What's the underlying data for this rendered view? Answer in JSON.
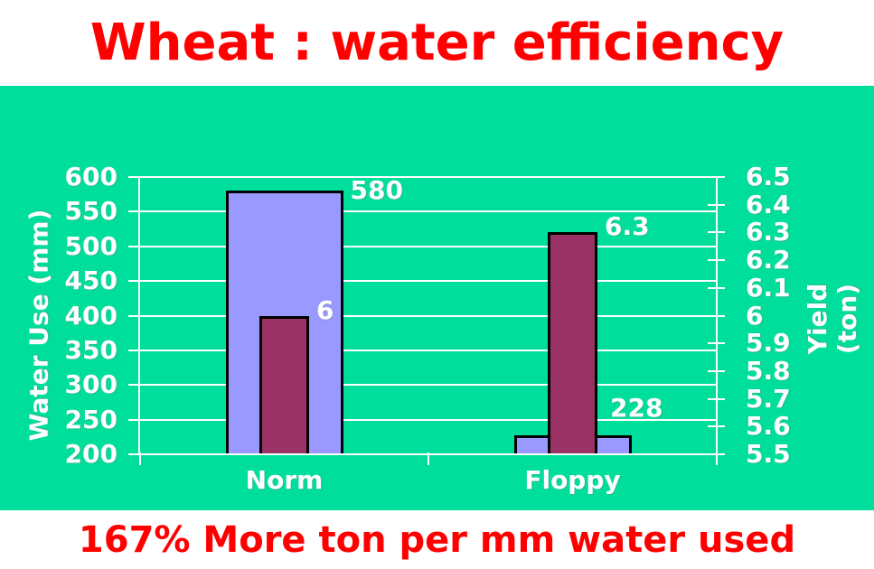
{
  "title": "Wheat : water efficiency",
  "footer": "167% More ton per mm water used",
  "colors": {
    "page_background": "#ffffff",
    "chart_background": "#00de9b",
    "title_text": "#ff0000",
    "footer_text": "#ff0000",
    "axis_text": "#ffffff",
    "gridline": "#ffffff",
    "water_bar": "#9999ff",
    "yield_bar": "#993366",
    "bar_border": "#000000"
  },
  "chart_data": {
    "type": "bar",
    "categories": [
      "Norm",
      "Floppy"
    ],
    "series": [
      {
        "name": "Water Use (mm)",
        "axis": "left",
        "values": [
          580,
          228
        ],
        "color": "#9999ff"
      },
      {
        "name": "Yield (ton)",
        "axis": "right",
        "values": [
          6,
          6.3
        ],
        "color": "#993366"
      }
    ],
    "data_labels": {
      "water": [
        "580",
        "228"
      ],
      "yield": [
        "6",
        "6.3"
      ]
    },
    "left_axis": {
      "label": "Water Use (mm)",
      "min": 200,
      "max": 600,
      "step": 50,
      "ticks": [
        "600",
        "550",
        "500",
        "450",
        "400",
        "350",
        "300",
        "250",
        "200"
      ]
    },
    "right_axis": {
      "label": "Yield\n(ton)",
      "min": 5.5,
      "max": 6.5,
      "step": 0.1,
      "ticks": [
        "6.5",
        "6.4",
        "6.3",
        "6.2",
        "6.1",
        "6",
        "5.9",
        "5.8",
        "5.7",
        "5.6",
        "5.5"
      ]
    },
    "grid": true,
    "legend": "none"
  }
}
